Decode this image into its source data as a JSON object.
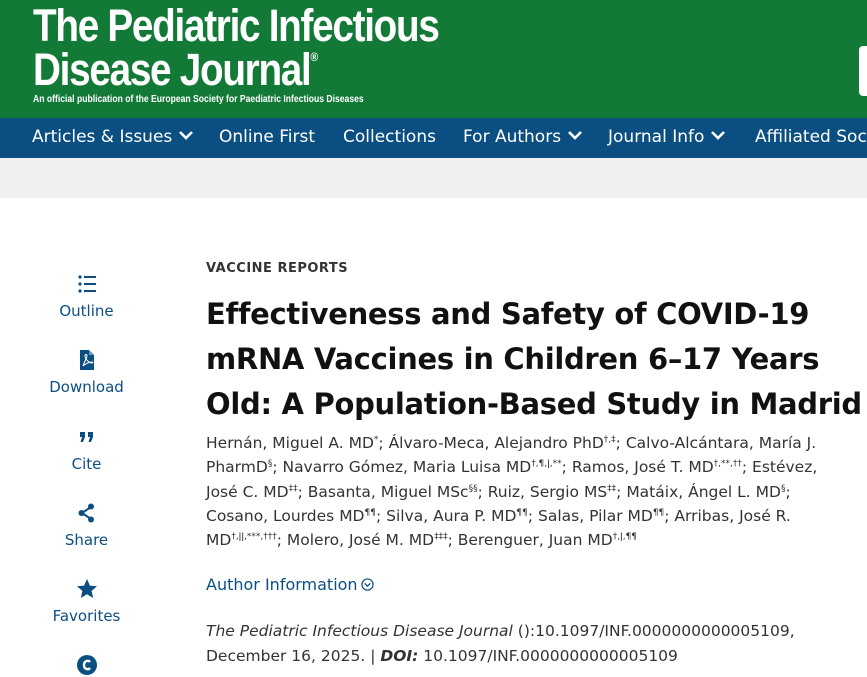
{
  "journal": {
    "title_line1": "The Pediatric Infectious",
    "title_line2": "Disease Journal",
    "registered_mark": "®",
    "tagline": "An official publication of the European Society for Paediatric Infectious Diseases"
  },
  "nav": {
    "items": [
      {
        "label": "Articles & Issues",
        "has_dropdown": true
      },
      {
        "label": "Online First",
        "has_dropdown": false
      },
      {
        "label": "Collections",
        "has_dropdown": false
      },
      {
        "label": "For Authors",
        "has_dropdown": true
      },
      {
        "label": "Journal Info",
        "has_dropdown": true
      },
      {
        "label": "Affiliated Soc",
        "has_dropdown": false
      }
    ]
  },
  "tools": [
    {
      "label": "Outline",
      "icon": "outline-list-icon"
    },
    {
      "label": "Download",
      "icon": "pdf-download-icon"
    },
    {
      "label": "Cite",
      "icon": "quote-icon"
    },
    {
      "label": "Share",
      "icon": "share-icon"
    },
    {
      "label": "Favorites",
      "icon": "star-icon"
    },
    {
      "label": "",
      "icon": "permissions-icon"
    }
  ],
  "article": {
    "kicker": "VACCINE REPORTS",
    "title_lines": [
      "Effectiveness and Safety of COVID-19",
      "mRNA Vaccines in Children 6–17 Years",
      "Old: A Population-Based Study in Madrid"
    ],
    "authors": [
      {
        "name": "Hernán, Miguel A. MD",
        "sup": "*"
      },
      {
        "name": "Álvaro-Meca, Alejandro PhD",
        "sup": "†,‡"
      },
      {
        "name": "Calvo-Alcántara, María J. PharmD",
        "sup": "§"
      },
      {
        "name": "Navarro Gómez, Maria Luisa MD",
        "sup": "†,¶,ǀ,**"
      },
      {
        "name": "Ramos, José T. MD",
        "sup": "†,**,††"
      },
      {
        "name": "Estévez, José C. MD",
        "sup": "‡‡"
      },
      {
        "name": "Basanta, Miguel MSc",
        "sup": "§§"
      },
      {
        "name": "Ruiz, Sergio MS",
        "sup": "‡‡"
      },
      {
        "name": "Matáix, Ángel L. MD",
        "sup": "§"
      },
      {
        "name": "Cosano, Lourdes MD",
        "sup": "¶¶"
      },
      {
        "name": "Silva, Aura P. MD",
        "sup": "¶¶"
      },
      {
        "name": "Salas, Pilar MD",
        "sup": "¶¶"
      },
      {
        "name": "Arribas, José R. MD",
        "sup": "†,ǀǀ,***,†††"
      },
      {
        "name": "Molero, José M. MD",
        "sup": "‡‡‡"
      },
      {
        "name": "Berenguer, Juan MD",
        "sup": "†,ǀ,¶¶"
      }
    ],
    "author_info_label": "Author Information",
    "citation": {
      "journal": "The Pediatric Infectious Disease Journal",
      "part1": " ():10.1097/INF.0000000000005109,",
      "date": "December 16, 2025.",
      "separator": " | ",
      "doi_label": "DOI:",
      "doi": " 10.1097/INF.0000000000005109"
    }
  },
  "colors": {
    "header_green": "#127a36",
    "nav_blue": "#0b4f82",
    "band_gray": "#f0f0f0"
  }
}
